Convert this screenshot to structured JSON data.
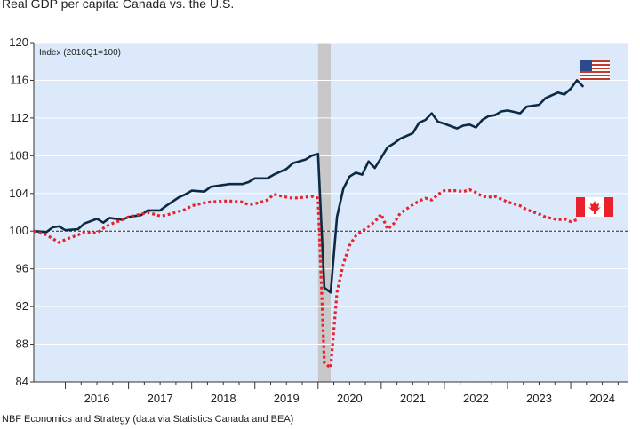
{
  "chart_data": {
    "type": "line",
    "title": "Real GDP per capita: Canada vs. the U.S.",
    "index_note": "Index (2016Q1=100)",
    "source": "NBF Economics and Strategy (data via Statistics Canada and BEA)",
    "ylim": [
      84,
      120
    ],
    "y_ticks": [
      "84",
      "88",
      "92",
      "96",
      "100",
      "104",
      "108",
      "112",
      "116",
      "120"
    ],
    "x_ticks": [
      "2016",
      "2017",
      "2018",
      "2019",
      "2020",
      "2021",
      "2022",
      "2023",
      "2024"
    ],
    "xlim": [
      2015.5,
      2024.9
    ],
    "reference_line": 100,
    "recession_band": [
      2020.0,
      2020.2
    ],
    "colors": {
      "us": "#0d2a45",
      "canada": "#e8212d",
      "background": "#dbe9fa",
      "grid": "#ffffff",
      "recession": "#c8c8c8"
    },
    "series": [
      {
        "name": "United States",
        "flag": "us-flag-icon",
        "x": [
          2015.5,
          2015.7,
          2015.8,
          2015.9,
          2016.0,
          2016.2,
          2016.3,
          2016.5,
          2016.6,
          2016.7,
          2016.9,
          2017.0,
          2017.2,
          2017.3,
          2017.5,
          2017.6,
          2017.8,
          2017.9,
          2018.0,
          2018.2,
          2018.3,
          2018.5,
          2018.6,
          2018.8,
          2018.9,
          2019.0,
          2019.2,
          2019.3,
          2019.5,
          2019.6,
          2019.8,
          2019.9,
          2020.0,
          2020.1,
          2020.2,
          2020.3,
          2020.4,
          2020.5,
          2020.6,
          2020.7,
          2020.8,
          2020.9,
          2021.0,
          2021.1,
          2021.2,
          2021.3,
          2021.5,
          2021.6,
          2021.7,
          2021.8,
          2021.9,
          2022.0,
          2022.2,
          2022.3,
          2022.4,
          2022.5,
          2022.6,
          2022.7,
          2022.8,
          2022.9,
          2023.0,
          2023.2,
          2023.3,
          2023.5,
          2023.6,
          2023.8,
          2023.9,
          2024.0,
          2024.1,
          2024.2
        ],
        "values": [
          100.0,
          99.9,
          100.4,
          100.5,
          100.1,
          100.2,
          100.8,
          101.3,
          100.9,
          101.4,
          101.2,
          101.5,
          101.7,
          102.2,
          102.2,
          102.7,
          103.6,
          103.9,
          104.3,
          104.2,
          104.7,
          104.9,
          105.0,
          105.0,
          105.2,
          105.6,
          105.6,
          106.0,
          106.6,
          107.2,
          107.6,
          108.0,
          108.2,
          94.0,
          93.5,
          101.5,
          104.5,
          105.8,
          106.2,
          106.0,
          107.4,
          106.7,
          107.8,
          108.9,
          109.3,
          109.8,
          110.4,
          111.5,
          111.8,
          112.5,
          111.6,
          111.4,
          110.9,
          111.2,
          111.3,
          111.0,
          111.8,
          112.2,
          112.3,
          112.7,
          112.8,
          112.5,
          113.2,
          113.4,
          114.1,
          114.7,
          114.5,
          115.1,
          116.0,
          115.3
        ]
      },
      {
        "name": "Canada",
        "flag": "canada-flag-icon",
        "x": [
          2015.5,
          2015.7,
          2015.8,
          2015.9,
          2016.0,
          2016.2,
          2016.3,
          2016.5,
          2016.6,
          2016.7,
          2016.9,
          2017.0,
          2017.2,
          2017.3,
          2017.5,
          2017.6,
          2017.8,
          2017.9,
          2018.0,
          2018.2,
          2018.3,
          2018.5,
          2018.6,
          2018.8,
          2018.9,
          2019.0,
          2019.2,
          2019.3,
          2019.5,
          2019.6,
          2019.8,
          2019.9,
          2020.0,
          2020.1,
          2020.2,
          2020.3,
          2020.4,
          2020.5,
          2020.6,
          2020.7,
          2020.8,
          2020.9,
          2021.0,
          2021.1,
          2021.2,
          2021.3,
          2021.5,
          2021.6,
          2021.7,
          2021.8,
          2021.9,
          2022.0,
          2022.2,
          2022.3,
          2022.4,
          2022.5,
          2022.6,
          2022.7,
          2022.8,
          2022.9,
          2023.0,
          2023.2,
          2023.3,
          2023.5,
          2023.6,
          2023.8,
          2023.9,
          2024.0,
          2024.1
        ],
        "values": [
          100.0,
          99.6,
          99.2,
          98.8,
          99.1,
          99.6,
          99.9,
          99.8,
          100.3,
          100.7,
          101.2,
          101.5,
          101.8,
          102.0,
          101.6,
          101.7,
          102.1,
          102.3,
          102.7,
          103.0,
          103.1,
          103.2,
          103.2,
          103.1,
          102.8,
          102.9,
          103.3,
          103.9,
          103.6,
          103.5,
          103.6,
          103.7,
          103.5,
          86.0,
          85.5,
          93.5,
          96.5,
          98.5,
          99.5,
          100.0,
          100.5,
          101.0,
          101.8,
          100.2,
          100.8,
          101.9,
          102.8,
          103.2,
          103.5,
          103.3,
          103.9,
          104.3,
          104.3,
          104.2,
          104.4,
          104.1,
          103.7,
          103.6,
          103.7,
          103.4,
          103.1,
          102.7,
          102.3,
          101.8,
          101.5,
          101.2,
          101.3,
          101.0,
          101.2
        ]
      }
    ]
  }
}
